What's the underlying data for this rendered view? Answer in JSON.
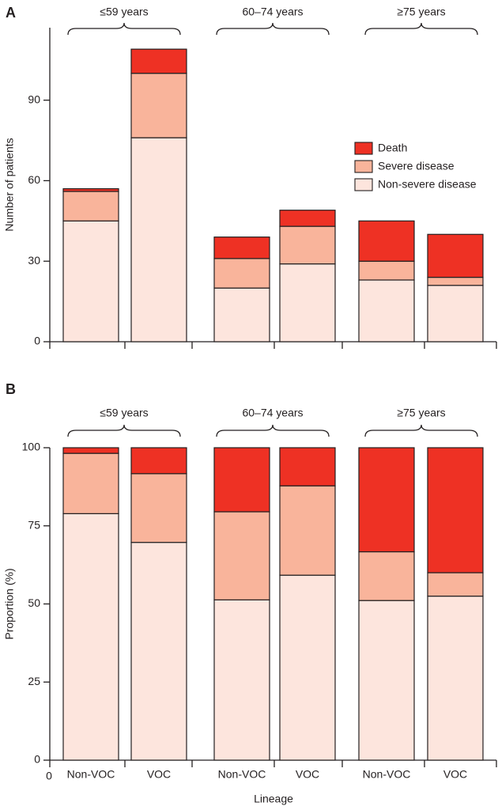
{
  "colors": {
    "death": "#ee3124",
    "severe": "#f9b49b",
    "nonsevere": "#fde5dd",
    "stroke": "#231f20"
  },
  "chart_data": [
    {
      "type": "bar",
      "stacked": true,
      "panel": "A",
      "title": "",
      "ylabel": "Number of patients",
      "xlabel": "",
      "ylim": [
        0,
        117
      ],
      "yticks": [
        0,
        30,
        60,
        90
      ],
      "categories": [
        "Non-VOC",
        "VOC",
        "Non-VOC",
        "VOC",
        "Non-VOC",
        "VOC"
      ],
      "groups": [
        {
          "label": "≤59 years",
          "members": [
            0,
            1
          ]
        },
        {
          "label": "60–74 years",
          "members": [
            2,
            3
          ]
        },
        {
          "label": "≥75 years",
          "members": [
            4,
            5
          ]
        }
      ],
      "series": [
        {
          "name": "Non-severe disease",
          "color_key": "nonsevere",
          "values": [
            45,
            76,
            20,
            29,
            23,
            21
          ]
        },
        {
          "name": "Severe disease",
          "color_key": "severe",
          "values": [
            11,
            24,
            11,
            14,
            7,
            3
          ]
        },
        {
          "name": "Death",
          "color_key": "death",
          "values": [
            1,
            9,
            8,
            6,
            15,
            16
          ]
        }
      ],
      "legend": {
        "position": "right",
        "entries": [
          "Death",
          "Severe disease",
          "Non-severe disease"
        ]
      }
    },
    {
      "type": "bar",
      "stacked": true,
      "panel": "B",
      "title": "",
      "ylabel": "Proportion (%)",
      "xlabel": "Lineage",
      "ylim": [
        0,
        100
      ],
      "yticks": [
        0,
        25,
        50,
        75,
        100
      ],
      "categories": [
        "Non-VOC",
        "VOC",
        "Non-VOC",
        "VOC",
        "Non-VOC",
        "VOC"
      ],
      "groups": [
        {
          "label": "≤59 years",
          "members": [
            0,
            1
          ]
        },
        {
          "label": "60–74 years",
          "members": [
            2,
            3
          ]
        },
        {
          "label": "≥75 years",
          "members": [
            4,
            5
          ]
        }
      ],
      "series": [
        {
          "name": "Non-severe disease",
          "color_key": "nonsevere",
          "values": [
            78.9,
            69.7,
            51.3,
            59.2,
            51.1,
            52.5
          ]
        },
        {
          "name": "Severe disease",
          "color_key": "severe",
          "values": [
            19.3,
            22.0,
            28.2,
            28.6,
            15.6,
            7.5
          ]
        },
        {
          "name": "Death",
          "color_key": "death",
          "values": [
            1.8,
            8.3,
            20.5,
            12.2,
            33.3,
            40.0
          ]
        }
      ]
    }
  ]
}
